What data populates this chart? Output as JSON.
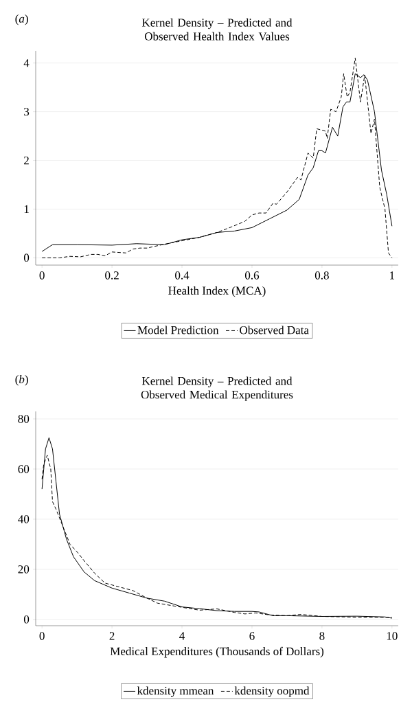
{
  "chart_data": [
    {
      "type": "line",
      "title": "Kernel Density – Predicted and Observed Health Index Values",
      "xlabel": "Health Index (MCA)",
      "annotations": [
        "(*a*)"
      ],
      "xlim": [
        -0.018,
        1.018
      ],
      "ylim": [
        -0.15,
        4.25
      ],
      "xticks": [
        0,
        0.2,
        0.4,
        0.6,
        0.8,
        1
      ],
      "yticks": [
        0,
        1,
        2,
        3,
        4
      ],
      "grid": "y",
      "legend": "bottom",
      "marker": "none",
      "series": [
        {
          "name": "Model Prediction",
          "color": "#000000",
          "line_style": "solid",
          "x": [
            0,
            0.03,
            0.1,
            0.2,
            0.27,
            0.35,
            0.4,
            0.45,
            0.5,
            0.55,
            0.6,
            0.65,
            0.7,
            0.735,
            0.76,
            0.775,
            0.79,
            0.8,
            0.81,
            0.83,
            0.845,
            0.86,
            0.87,
            0.88,
            0.895,
            0.91,
            0.92,
            0.93,
            0.95,
            0.97,
            0.985,
            1.0
          ],
          "values": [
            0.13,
            0.27,
            0.27,
            0.26,
            0.29,
            0.27,
            0.37,
            0.42,
            0.52,
            0.55,
            0.62,
            0.8,
            0.98,
            1.2,
            1.7,
            1.85,
            2.2,
            2.2,
            2.15,
            2.68,
            2.5,
            3.1,
            3.2,
            3.2,
            3.78,
            3.7,
            3.76,
            3.65,
            3.0,
            1.8,
            1.3,
            0.65
          ]
        },
        {
          "name": "Observed Data",
          "color": "#000000",
          "line_style": "dashed",
          "x": [
            0,
            0.05,
            0.08,
            0.11,
            0.14,
            0.16,
            0.18,
            0.2,
            0.24,
            0.26,
            0.28,
            0.3,
            0.35,
            0.4,
            0.45,
            0.5,
            0.54,
            0.58,
            0.6,
            0.62,
            0.64,
            0.66,
            0.67,
            0.7,
            0.73,
            0.74,
            0.76,
            0.775,
            0.785,
            0.81,
            0.815,
            0.825,
            0.84,
            0.855,
            0.862,
            0.872,
            0.88,
            0.895,
            0.91,
            0.922,
            0.94,
            0.95,
            0.965,
            0.98,
            0.99,
            1.0
          ],
          "values": [
            0,
            0,
            0.03,
            0.02,
            0.07,
            0.07,
            0.04,
            0.12,
            0.1,
            0.18,
            0.2,
            0.2,
            0.28,
            0.35,
            0.42,
            0.52,
            0.63,
            0.75,
            0.88,
            0.92,
            0.92,
            1.12,
            1.1,
            1.35,
            1.65,
            1.6,
            2.15,
            2.05,
            2.65,
            2.6,
            2.45,
            3.05,
            3.0,
            3.3,
            3.78,
            3.3,
            3.4,
            4.1,
            3.2,
            3.75,
            2.55,
            2.85,
            1.45,
            1.0,
            0.1,
            0.0
          ]
        }
      ]
    },
    {
      "type": "line",
      "title": "Kernel Density – Predicted and Observed Medical Expenditures",
      "xlabel": "Medical Expenditures (Thousands of Dollars)",
      "annotations": [
        "(*b*)"
      ],
      "xlim": [
        -0.18,
        10.18
      ],
      "ylim": [
        -2.5,
        83
      ],
      "xticks": [
        0,
        2,
        4,
        6,
        8,
        10
      ],
      "yticks": [
        0,
        20,
        40,
        60,
        80
      ],
      "grid": "y",
      "legend": "bottom",
      "marker": "none",
      "series": [
        {
          "name": "kdensity mmean",
          "color": "#000000",
          "line_style": "solid",
          "x": [
            0,
            0.1,
            0.2,
            0.3,
            0.4,
            0.5,
            0.7,
            0.9,
            1.2,
            1.5,
            2,
            2.5,
            3,
            3.5,
            4,
            4.5,
            5,
            5.5,
            6,
            6.2,
            6.6,
            7,
            8,
            9,
            9.8,
            10
          ],
          "values": [
            52,
            68,
            72.5,
            68,
            55,
            42,
            32,
            25,
            19,
            15.5,
            12.5,
            10.5,
            8.5,
            7.3,
            5,
            4.3,
            3.5,
            3.2,
            3.2,
            3,
            1.5,
            1.5,
            1.2,
            1.3,
            1,
            0.5
          ]
        },
        {
          "name": "kdensity oopmd",
          "color": "#000000",
          "line_style": "dashed",
          "x": [
            0,
            0.05,
            0.15,
            0.25,
            0.3,
            0.4,
            0.6,
            0.8,
            1,
            1.2,
            1.5,
            1.8,
            2.2,
            2.6,
            3,
            3.3,
            3.8,
            4.5,
            5,
            5.5,
            5.8,
            6.1,
            6.5,
            7,
            7.4,
            8,
            9,
            10
          ],
          "values": [
            56,
            62,
            65.5,
            60,
            47,
            44,
            37,
            30,
            27,
            23.5,
            18.5,
            14.5,
            13,
            11.5,
            8.5,
            6.5,
            5.3,
            3.7,
            4.2,
            2.8,
            2.2,
            2.6,
            1.8,
            1.5,
            2.0,
            1.2,
            0.9,
            0.8
          ]
        }
      ]
    }
  ]
}
